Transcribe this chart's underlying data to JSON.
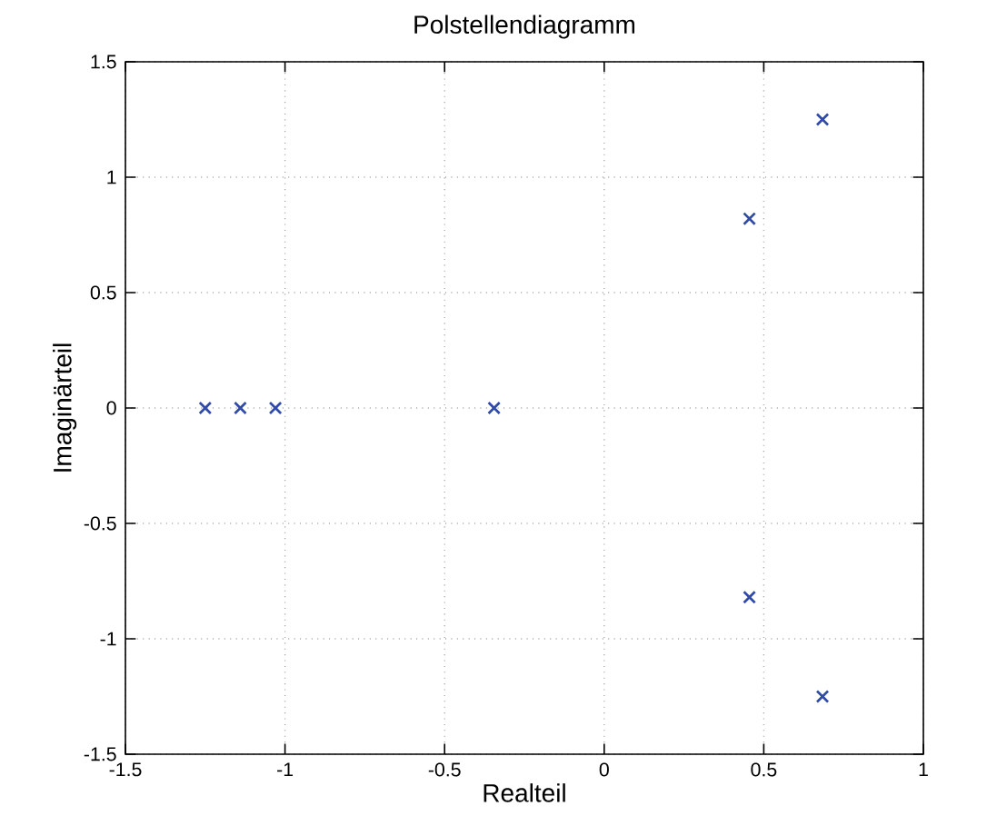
{
  "chart_data": {
    "type": "scatter",
    "title": "Polstellendiagramm",
    "xlabel": "Realteil",
    "ylabel": "Imaginärteil",
    "x": [
      -1.25,
      -1.14,
      -1.03,
      -0.345,
      0.455,
      0.455,
      0.684,
      0.684
    ],
    "series": [
      {
        "color": "#2f4aa8",
        "values": [
          0,
          0,
          0,
          0,
          0.82,
          -0.82,
          1.25,
          -1.25
        ]
      }
    ],
    "xlim": [
      -1.5,
      1
    ],
    "xticks": [
      -1.5,
      -1,
      -0.5,
      0,
      0.5,
      1
    ],
    "ylim": [
      -1.5,
      1.5
    ],
    "yticks": [
      -1.5,
      -1,
      -0.5,
      0,
      0.5,
      1,
      1.5
    ],
    "grid": true,
    "marker": "cross"
  }
}
